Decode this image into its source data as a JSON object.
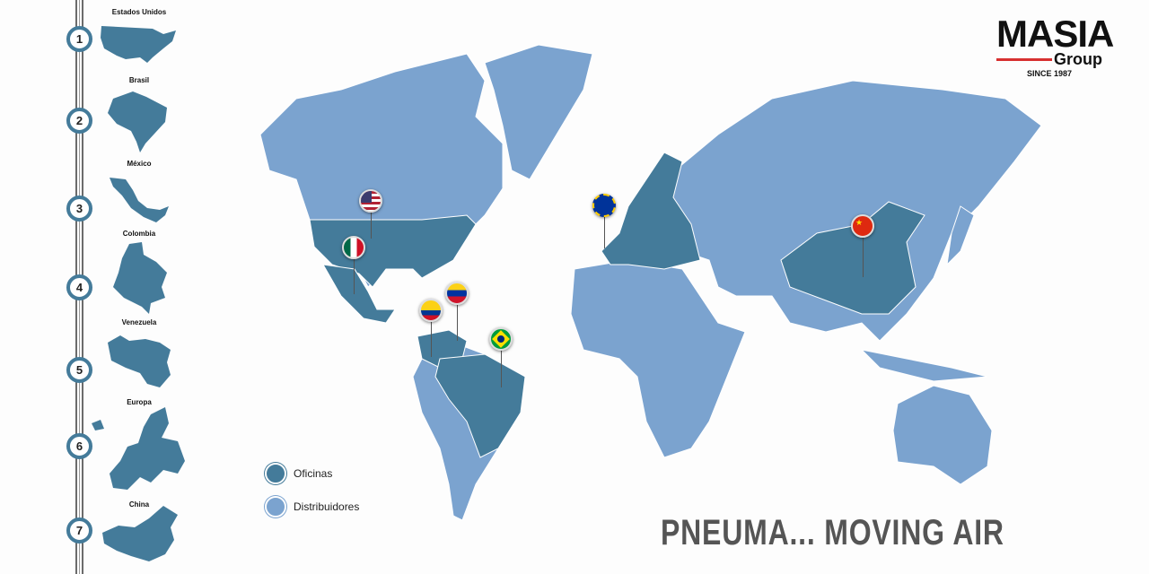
{
  "logo": {
    "brand": "MASIA",
    "sub": "Group",
    "since": "SINCE 1987"
  },
  "countries": [
    {
      "num": "1",
      "name": "Estados Unidos"
    },
    {
      "num": "2",
      "name": "Brasil"
    },
    {
      "num": "3",
      "name": "México"
    },
    {
      "num": "4",
      "name": "Colombia"
    },
    {
      "num": "5",
      "name": "Venezuela"
    },
    {
      "num": "6",
      "name": "Europa"
    },
    {
      "num": "7",
      "name": "China"
    }
  ],
  "legend": [
    {
      "label": "Oficinas",
      "color": "#447b9a"
    },
    {
      "label": "Distribuidores",
      "color": "#7ba3cf"
    }
  ],
  "slogan": "PNEUMA... MOVING AIR",
  "colors": {
    "office": "#447b9a",
    "distributor": "#7ba3cf",
    "accent": "#d73030"
  },
  "pins": [
    {
      "flag": "usa-flag-icon"
    },
    {
      "flag": "mexico-flag-icon"
    },
    {
      "flag": "venezuela-flag-icon"
    },
    {
      "flag": "colombia-flag-icon"
    },
    {
      "flag": "brazil-flag-icon"
    },
    {
      "flag": "eu-flag-icon"
    },
    {
      "flag": "china-flag-icon"
    }
  ]
}
